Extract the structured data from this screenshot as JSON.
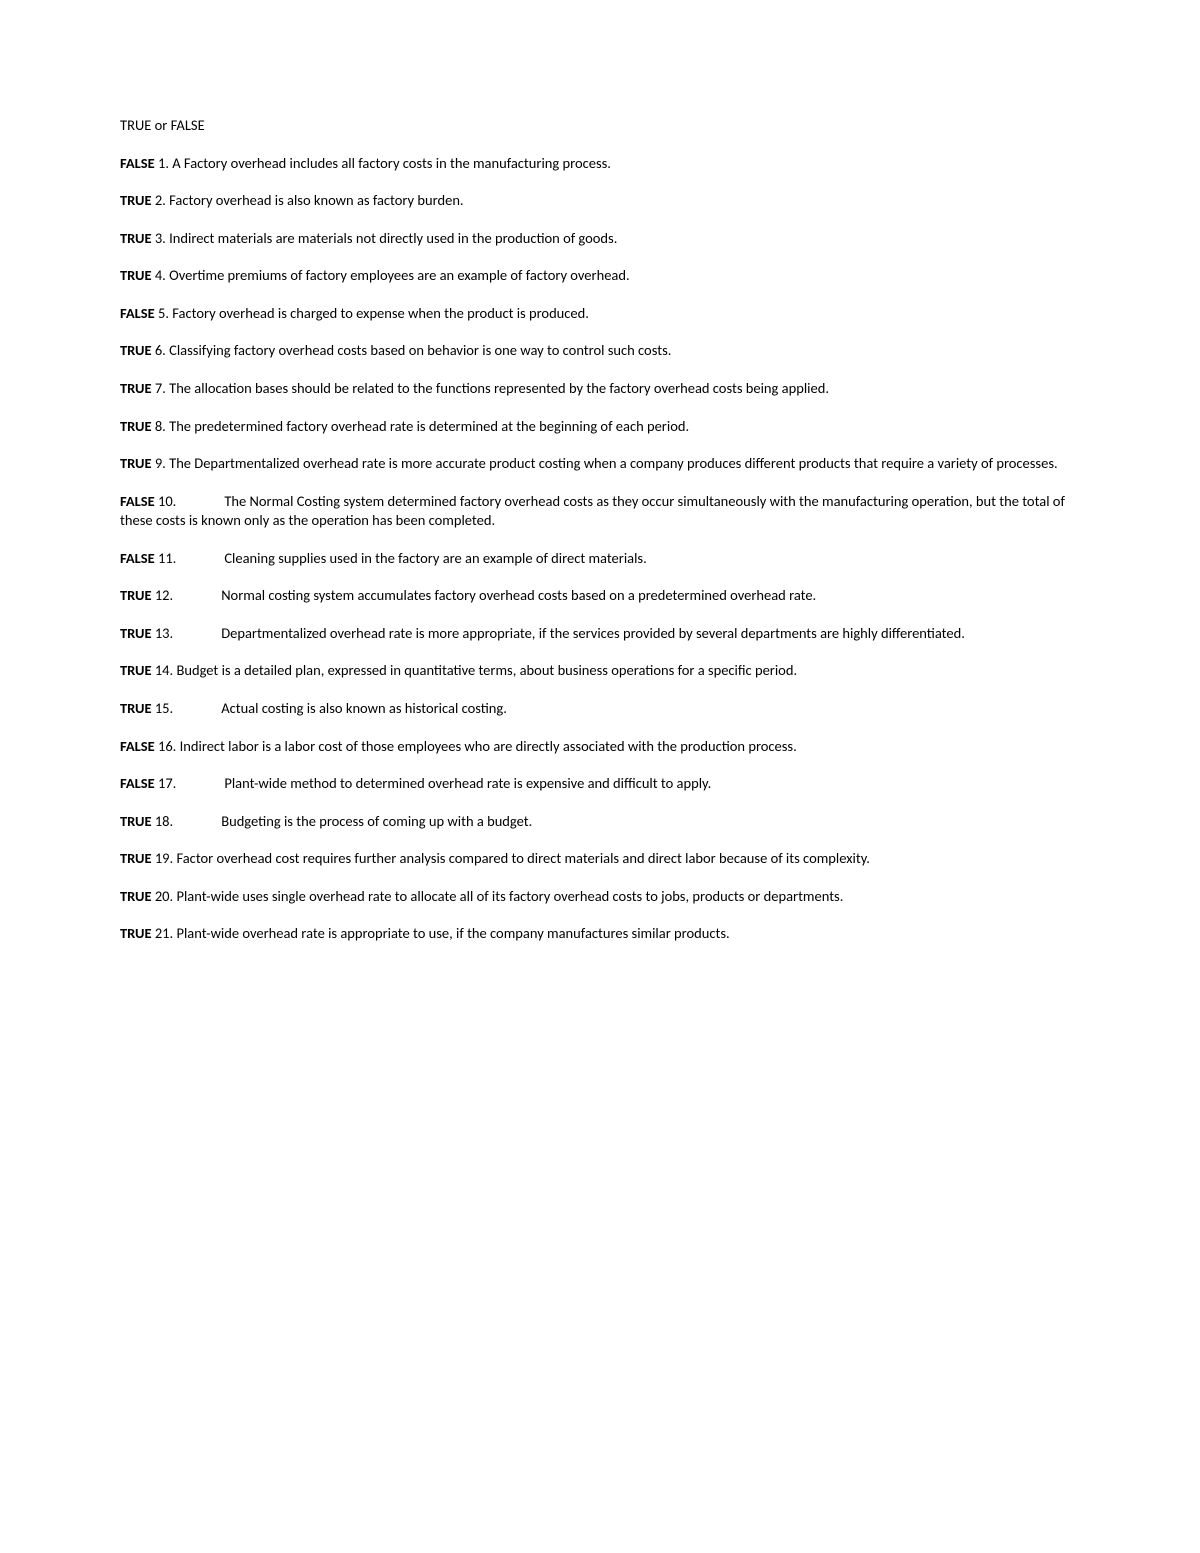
{
  "title": "TRUE or FALSE",
  "items": [
    {
      "answer": "FALSE",
      "num": "1.",
      "gap": false,
      "text": "A Factory overhead includes all factory costs in the manufacturing process."
    },
    {
      "answer": "TRUE",
      "num": "2.",
      "gap": false,
      "text": "Factory overhead is also known as factory burden."
    },
    {
      "answer": "TRUE",
      "num": "3.",
      "gap": false,
      "text": "Indirect materials are materials not directly used in the production of goods."
    },
    {
      "answer": "TRUE",
      "num": "4.",
      "gap": false,
      "text": "Overtime premiums of factory employees are an example of factory overhead."
    },
    {
      "answer": "FALSE",
      "num": "5.",
      "gap": false,
      "text": "Factory overhead is charged to expense when the product is produced."
    },
    {
      "answer": "TRUE",
      "num": "6.",
      "gap": false,
      "text": "Classifying factory overhead costs based on behavior is one way to control such costs."
    },
    {
      "answer": "TRUE",
      "num": "7.",
      "gap": false,
      "text": "The allocation bases should be related to the functions represented by the factory overhead costs being applied."
    },
    {
      "answer": "TRUE",
      "num": "8.",
      "gap": false,
      "text": "The predetermined factory overhead rate is determined at the beginning of each period."
    },
    {
      "answer": "TRUE",
      "num": "9.",
      "gap": false,
      "text": "The Departmentalized overhead rate is more accurate product costing when a company produces different products that require a variety of processes."
    },
    {
      "answer": "FALSE",
      "num": "10.",
      "gap": true,
      "text": "The Normal Costing system determined factory overhead costs as they occur simultaneously with the manufacturing operation, but the total of these costs is known only as the operation has been completed."
    },
    {
      "answer": "FALSE",
      "num": "11.",
      "gap": true,
      "text": "Cleaning supplies used in the factory are an example of direct materials."
    },
    {
      "answer": "TRUE",
      "num": "12.",
      "gap": true,
      "text": "Normal costing system accumulates factory overhead costs based on a predetermined overhead rate."
    },
    {
      "answer": "TRUE",
      "num": "13.",
      "gap": true,
      "text": "Departmentalized overhead rate is more appropriate, if the services provided by several departments are highly differentiated."
    },
    {
      "answer": "TRUE",
      "num": "14.",
      "gap": false,
      "text": "Budget is a detailed plan, expressed in quantitative terms, about business operations for a specific period."
    },
    {
      "answer": "TRUE",
      "num": "15.",
      "gap": true,
      "text": "Actual costing is also known as historical costing."
    },
    {
      "answer": "FALSE",
      "num": "16.",
      "gap": false,
      "text": "Indirect labor is a labor cost of those employees who are directly associated with the production process."
    },
    {
      "answer": "FALSE",
      "num": "17.",
      "gap": true,
      "text": "Plant-wide method to determined overhead rate is expensive and difficult to apply."
    },
    {
      "answer": "TRUE",
      "num": "18.",
      "gap": true,
      "text": "Budgeting is the process of coming up with a budget."
    },
    {
      "answer": "TRUE",
      "num": "19.",
      "gap": false,
      "text": "Factor overhead cost requires further analysis compared to direct materials and direct labor because of its complexity."
    },
    {
      "answer": "TRUE",
      "num": "20.",
      "gap": false,
      "text": "Plant-wide uses single overhead rate to allocate all of its factory overhead costs to jobs, products or departments."
    },
    {
      "answer": "TRUE",
      "num": "21.",
      "gap": false,
      "text": "Plant-wide overhead rate is appropriate to use, if the company manufactures similar products."
    }
  ]
}
